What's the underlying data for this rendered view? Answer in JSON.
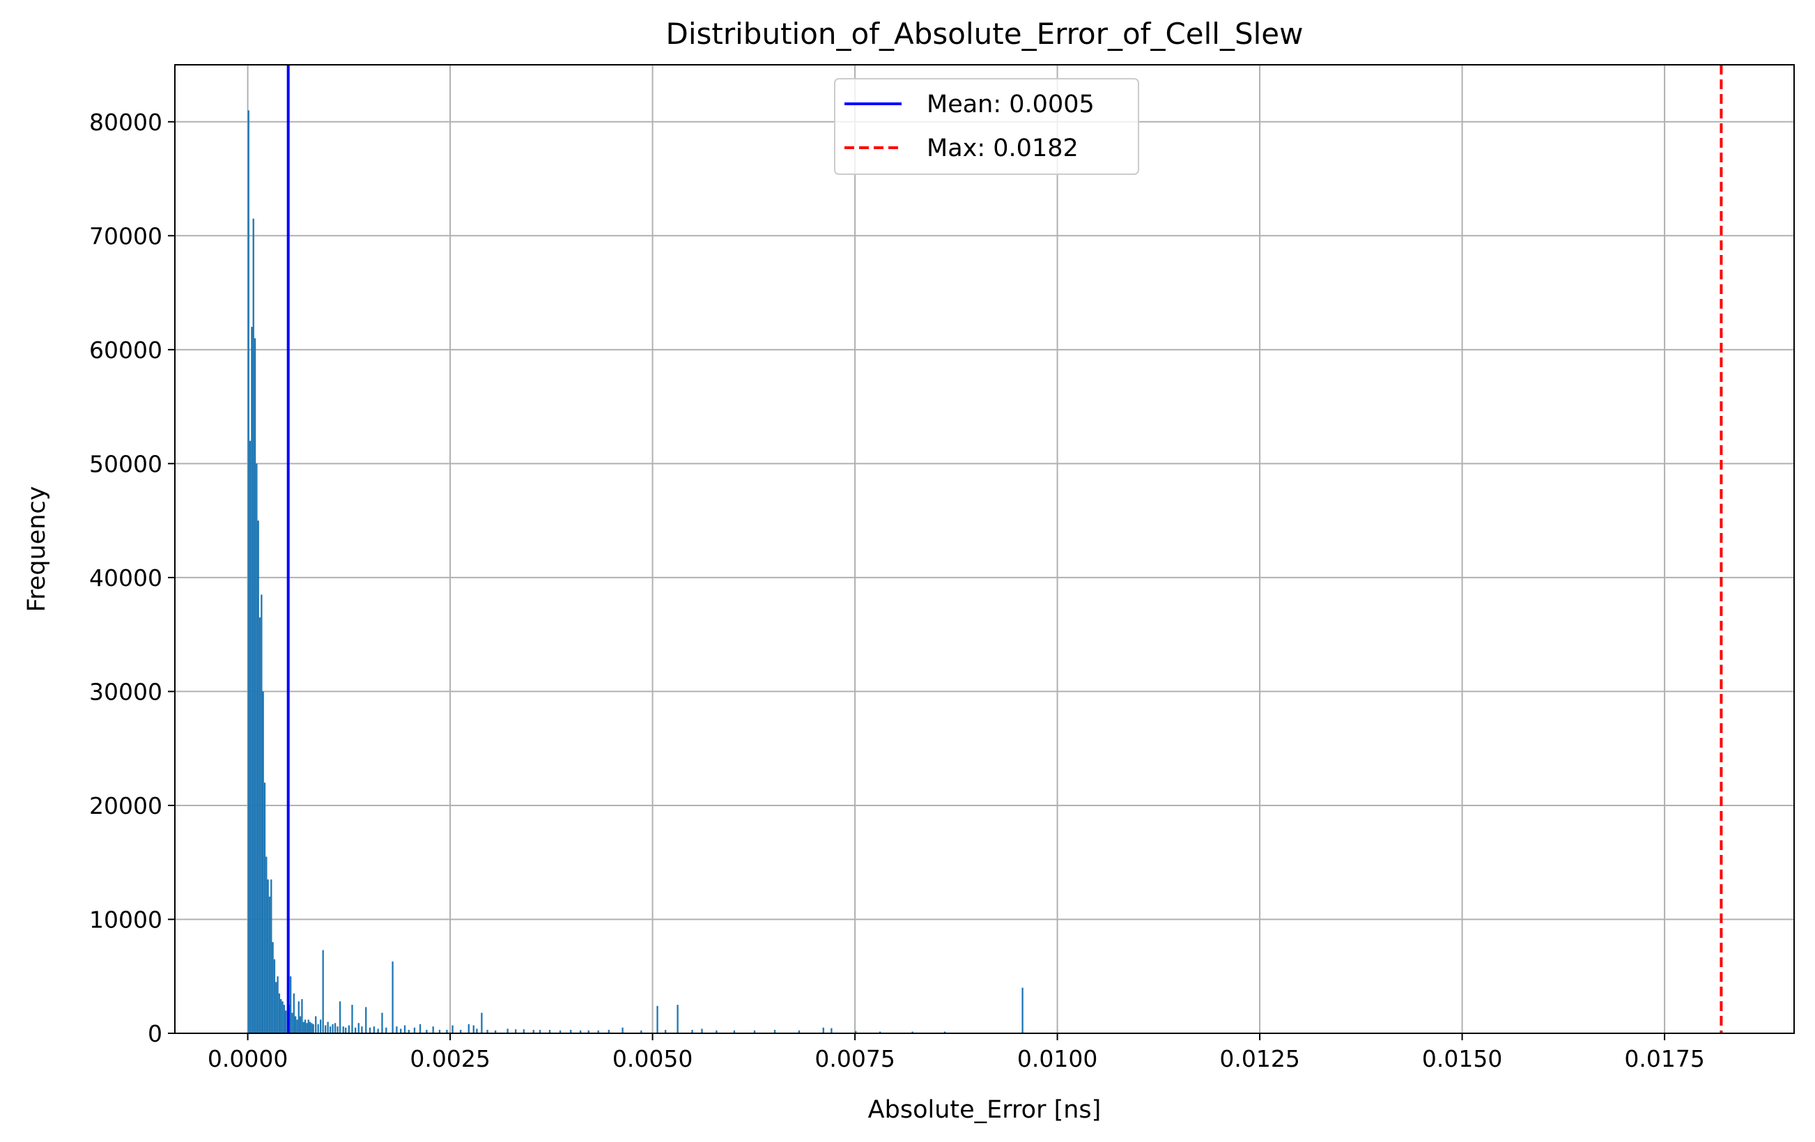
{
  "chart_data": {
    "type": "bar",
    "subtype": "histogram",
    "title": "Distribution_of_Absolute_Error_of_Cell_Slew",
    "xlabel": "Absolute_Error [ns]",
    "ylabel": "Frequency",
    "xlim": [
      -0.0009,
      0.0191
    ],
    "ylim": [
      0,
      85000
    ],
    "xticks": [
      0.0,
      0.0025,
      0.005,
      0.0075,
      0.01,
      0.0125,
      0.015,
      0.0175
    ],
    "xtick_labels": [
      "0.0000",
      "0.0025",
      "0.0050",
      "0.0075",
      "0.0100",
      "0.0125",
      "0.0150",
      "0.0175"
    ],
    "yticks": [
      0,
      10000,
      20000,
      30000,
      40000,
      50000,
      60000,
      70000,
      80000
    ],
    "ytick_labels": [
      "0",
      "10000",
      "20000",
      "30000",
      "40000",
      "50000",
      "60000",
      "70000",
      "80000"
    ],
    "grid": true,
    "bar_color": "#1f77b4",
    "bins": [
      [
        0.0,
        81000
      ],
      [
        2e-05,
        52000
      ],
      [
        4e-05,
        62000
      ],
      [
        6e-05,
        71500
      ],
      [
        8e-05,
        61000
      ],
      [
        0.0001,
        50000
      ],
      [
        0.00012,
        45000
      ],
      [
        0.00014,
        36500
      ],
      [
        0.00016,
        38500
      ],
      [
        0.00018,
        30000
      ],
      [
        0.0002,
        22000
      ],
      [
        0.00022,
        15500
      ],
      [
        0.00024,
        13500
      ],
      [
        0.00026,
        12000
      ],
      [
        0.00028,
        13500
      ],
      [
        0.0003,
        8000
      ],
      [
        0.00032,
        6500
      ],
      [
        0.00034,
        4500
      ],
      [
        0.00036,
        5000
      ],
      [
        0.00038,
        3500
      ],
      [
        0.0004,
        3000
      ],
      [
        0.00042,
        2800
      ],
      [
        0.00044,
        2500
      ],
      [
        0.00046,
        2000
      ],
      [
        0.0005,
        2500
      ],
      [
        0.00052,
        5000
      ],
      [
        0.00054,
        1800
      ],
      [
        0.00056,
        3500
      ],
      [
        0.00058,
        1500
      ],
      [
        0.0006,
        1200
      ],
      [
        0.00062,
        2800
      ],
      [
        0.00064,
        1500
      ],
      [
        0.00066,
        3000
      ],
      [
        0.00068,
        1000
      ],
      [
        0.0007,
        1200
      ],
      [
        0.00072,
        900
      ],
      [
        0.00074,
        1200
      ],
      [
        0.00076,
        1000
      ],
      [
        0.00078,
        900
      ],
      [
        0.0008,
        800
      ],
      [
        0.00083,
        1500
      ],
      [
        0.00086,
        800
      ],
      [
        0.00089,
        1200
      ],
      [
        0.00092,
        7300
      ],
      [
        0.00095,
        700
      ],
      [
        0.00098,
        1000
      ],
      [
        0.00101,
        600
      ],
      [
        0.00104,
        800
      ],
      [
        0.00107,
        900
      ],
      [
        0.0011,
        600
      ],
      [
        0.00113,
        2800
      ],
      [
        0.00117,
        600
      ],
      [
        0.0012,
        500
      ],
      [
        0.00124,
        700
      ],
      [
        0.00128,
        2500
      ],
      [
        0.00132,
        500
      ],
      [
        0.00136,
        900
      ],
      [
        0.0014,
        600
      ],
      [
        0.00145,
        2300
      ],
      [
        0.0015,
        500
      ],
      [
        0.00155,
        600
      ],
      [
        0.0016,
        400
      ],
      [
        0.00165,
        1800
      ],
      [
        0.0017,
        500
      ],
      [
        0.00178,
        6300
      ],
      [
        0.00183,
        600
      ],
      [
        0.00188,
        400
      ],
      [
        0.00193,
        700
      ],
      [
        0.00198,
        300
      ],
      [
        0.00205,
        500
      ],
      [
        0.00212,
        800
      ],
      [
        0.0022,
        300
      ],
      [
        0.00228,
        600
      ],
      [
        0.00236,
        300
      ],
      [
        0.00245,
        300
      ],
      [
        0.00252,
        700
      ],
      [
        0.00262,
        300
      ],
      [
        0.00272,
        800
      ],
      [
        0.00278,
        700
      ],
      [
        0.00282,
        400
      ],
      [
        0.00288,
        1800
      ],
      [
        0.00295,
        300
      ],
      [
        0.00305,
        250
      ],
      [
        0.0032,
        400
      ],
      [
        0.0033,
        350
      ],
      [
        0.0034,
        350
      ],
      [
        0.00352,
        300
      ],
      [
        0.0036,
        300
      ],
      [
        0.00372,
        300
      ],
      [
        0.00385,
        250
      ],
      [
        0.00398,
        300
      ],
      [
        0.0041,
        250
      ],
      [
        0.0042,
        250
      ],
      [
        0.00432,
        250
      ],
      [
        0.00445,
        300
      ],
      [
        0.00462,
        500
      ],
      [
        0.00485,
        250
      ],
      [
        0.00505,
        2400
      ],
      [
        0.00515,
        300
      ],
      [
        0.0053,
        2500
      ],
      [
        0.00548,
        300
      ],
      [
        0.0056,
        400
      ],
      [
        0.00578,
        250
      ],
      [
        0.006,
        250
      ],
      [
        0.00625,
        250
      ],
      [
        0.0065,
        300
      ],
      [
        0.0068,
        250
      ],
      [
        0.0071,
        500
      ],
      [
        0.0072,
        450
      ],
      [
        0.0075,
        200
      ],
      [
        0.0078,
        150
      ],
      [
        0.0082,
        150
      ],
      [
        0.0086,
        150
      ],
      [
        0.00956,
        4000
      ]
    ],
    "bin_width": 2e-05,
    "mean_line": {
      "x": 0.0005,
      "label": "Mean: 0.0005",
      "color": "#0000ff",
      "style": "solid"
    },
    "max_line": {
      "x": 0.0182,
      "label": "Max: 0.0182",
      "color": "#ff0000",
      "style": "dashed"
    },
    "legend_placement": "top-center",
    "legend": [
      {
        "label": "Mean: 0.0005",
        "color": "#0000ff",
        "style": "solid"
      },
      {
        "label": "Max: 0.0182",
        "color": "#ff0000",
        "style": "dashed"
      }
    ]
  }
}
